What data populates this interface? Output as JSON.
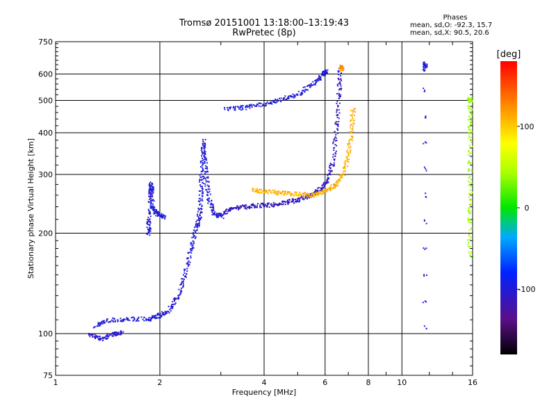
{
  "header": {
    "title_line1": "Tromsø 20151001 13:18:00–13:19:43",
    "title_line2": "RwPretec (8p)"
  },
  "phase_box": {
    "heading": "Phases",
    "o_mode": "mean, sd,O: -92.3, 15.7",
    "x_mode": "mean, sd,X:  90.5, 20.6"
  },
  "chart_data": {
    "type": "scatter",
    "xlabel": "Frequency [MHz]",
    "ylabel": "Stationary phase Virtual Height [km]",
    "xscale": "log",
    "yscale": "log",
    "xlim": [
      1,
      16
    ],
    "ylim": [
      75,
      750
    ],
    "x_ticks": [
      {
        "value": 1,
        "label": "1"
      },
      {
        "value": 2,
        "label": "2"
      },
      {
        "value": 4,
        "label": "4"
      },
      {
        "value": 6,
        "label": "6"
      },
      {
        "value": 8,
        "label": "8"
      },
      {
        "value": 10,
        "label": "10"
      },
      {
        "value": 16,
        "label": "16"
      }
    ],
    "y_ticks": [
      {
        "value": 75,
        "label": "75"
      },
      {
        "value": 100,
        "label": "100"
      },
      {
        "value": 200,
        "label": "200"
      },
      {
        "value": 300,
        "label": "300"
      },
      {
        "value": 400,
        "label": "400"
      },
      {
        "value": 500,
        "label": "500"
      },
      {
        "value": 600,
        "label": "600"
      },
      {
        "value": 750,
        "label": "750"
      }
    ],
    "grid": true,
    "colorbar": {
      "label": "[deg]",
      "range": [
        -180,
        180
      ],
      "ticks": [
        {
          "value": 100,
          "label": "100"
        },
        {
          "value": 0,
          "label": "0"
        },
        {
          "value": -100,
          "label": "-100"
        }
      ]
    },
    "traces": [
      {
        "phase": -100,
        "points": [
          [
            1.3,
            106
          ],
          [
            1.4,
            110
          ],
          [
            1.6,
            111
          ],
          [
            1.85,
            111
          ],
          [
            1.95,
            113
          ],
          [
            2.1,
            117
          ],
          [
            2.25,
            130
          ],
          [
            2.35,
            150
          ],
          [
            2.45,
            180
          ],
          [
            2.55,
            210
          ],
          [
            2.6,
            230
          ],
          [
            2.62,
            270
          ],
          [
            2.64,
            320
          ],
          [
            2.66,
            380
          ],
          [
            2.7,
            310
          ],
          [
            2.75,
            260
          ],
          [
            2.85,
            230
          ],
          [
            3.0,
            225
          ]
        ]
      },
      {
        "phase": -105,
        "points": [
          [
            1.25,
            100
          ],
          [
            1.35,
            97
          ],
          [
            1.45,
            100
          ],
          [
            1.55,
            101
          ]
        ]
      },
      {
        "phase": -100,
        "points": [
          [
            1.85,
            200
          ],
          [
            1.85,
            220
          ],
          [
            1.87,
            260
          ],
          [
            1.88,
            285
          ],
          [
            1.9,
            240
          ],
          [
            1.95,
            230
          ],
          [
            2.05,
            225
          ]
        ]
      },
      {
        "phase": -110,
        "points": [
          [
            3.0,
            230
          ],
          [
            3.2,
            238
          ],
          [
            3.5,
            241
          ],
          [
            3.8,
            243
          ],
          [
            4.2,
            244
          ],
          [
            4.6,
            248
          ],
          [
            5.0,
            253
          ],
          [
            5.4,
            260
          ],
          [
            5.8,
            272
          ],
          [
            6.1,
            290
          ],
          [
            6.3,
            330
          ],
          [
            6.45,
            420
          ],
          [
            6.55,
            520
          ],
          [
            6.6,
            620
          ]
        ]
      },
      {
        "phase": 110,
        "points": [
          [
            3.7,
            270
          ],
          [
            4.0,
            268
          ],
          [
            4.4,
            266
          ],
          [
            4.8,
            264
          ],
          [
            5.2,
            262
          ],
          [
            5.6,
            262
          ],
          [
            6.0,
            268
          ],
          [
            6.4,
            280
          ],
          [
            6.7,
            300
          ],
          [
            6.95,
            340
          ],
          [
            7.1,
            400
          ],
          [
            7.2,
            470
          ]
        ]
      },
      {
        "phase": -100,
        "points": [
          [
            3.1,
            475
          ],
          [
            3.5,
            478
          ],
          [
            4.0,
            490
          ],
          [
            4.5,
            505
          ],
          [
            5.0,
            525
          ],
          [
            5.5,
            560
          ],
          [
            5.9,
            600
          ],
          [
            6.0,
            615
          ]
        ]
      },
      {
        "phase": 120,
        "points": [
          [
            6.7,
            640
          ],
          [
            6.65,
            620
          ]
        ]
      },
      {
        "phase": -100,
        "points": [
          [
            11.6,
            105
          ],
          [
            11.6,
            650
          ],
          [
            11.6,
            620
          ]
        ]
      },
      {
        "phase": 40,
        "points": [
          [
            15.6,
            170
          ],
          [
            15.7,
            250
          ],
          [
            15.7,
            500
          ],
          [
            15.6,
            510
          ],
          [
            15.7,
            390
          ],
          [
            15.6,
            220
          ]
        ]
      }
    ]
  }
}
